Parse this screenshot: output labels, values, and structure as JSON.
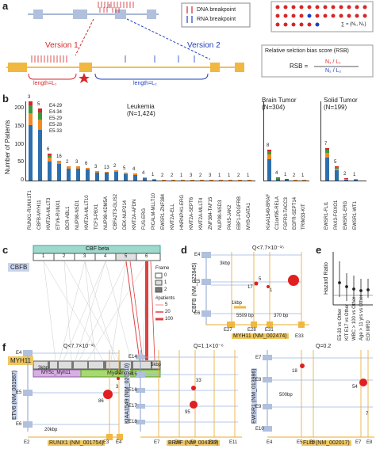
{
  "panels": {
    "a": "a",
    "b": "b",
    "c": "c",
    "d": "d",
    "e": "e",
    "f": "f"
  },
  "a": {
    "legend_dna": "DNA breakpoint",
    "legend_rna": "RNA breakpoint",
    "version1": "Version 1",
    "version2": "Version 2",
    "length1": "length=L₁",
    "length2": "length=L₂",
    "sum": "∑ = (N₁, N₂)",
    "rsb_title": "Relative selction bias score (RSB)",
    "rsb_label": "RSB =",
    "rsb_num": "N₁ / L₁",
    "rsb_den": "N₂ / L₂"
  },
  "b": {
    "ylabel": "Number of Patients",
    "leukemia": "Leukemia",
    "leukemia_n": "(N=1,424)",
    "brain": "Brain Tumor",
    "brain_n": "(N=304)",
    "solid": "Solid Tumor",
    "solid_n": "(N=199)",
    "yticks": [
      "0",
      "50",
      "100",
      "150",
      "200"
    ],
    "extra_labels": [
      "E4-29",
      "E4-34",
      "E5-29",
      "E5-28",
      "E5-33"
    ],
    "colors": {
      "blue": "#2d6fad",
      "orange": "#f08a24",
      "green": "#3a9a3a",
      "red": "#d62728",
      "purple": "#8b5db7",
      "pink": "#e377c2",
      "teal": "#17becf",
      "olive": "#bcbd22"
    },
    "leukemia_genes": [
      "RUNX1-RUNX1T1",
      "CBFB-MYH11",
      "KMT2A-MLLT3",
      "ETV6-RUNX1",
      "BCR-ABL1",
      "NUP98-NSD1",
      "KMT2A-MLLT10",
      "TCF3-PBX1",
      "NUP98-KDM5A",
      "CBFA2T3-GLIS2",
      "DEK-NUP214",
      "KMT2A-AFDN",
      "FUS-ERG",
      "PICALM-MLLT10",
      "EWSR1-ZNF384",
      "KMT2A-ELL",
      "HNRNPH1-ERG",
      "KMT2A-SEPT6",
      "KMT2A-MLLT4",
      "ZNF384-TAF15",
      "NUP98-NSD3",
      "PAX5-JAK2",
      "EBF1-PDGFRB",
      "MYB-GATA1"
    ],
    "leukemia_totals": [
      220,
      200,
      75,
      55,
      40,
      40,
      35,
      27,
      25,
      28,
      22,
      19,
      9,
      4,
      2,
      2,
      2,
      2,
      2,
      3,
      2,
      2,
      2,
      2
    ],
    "leukemia_labels": [
      "3",
      "5",
      "6",
      "16",
      "2",
      "3",
      "6",
      "3",
      "13",
      "2",
      "5",
      "4",
      "4",
      "1",
      "2",
      "2",
      "1",
      "3",
      "2",
      "3",
      "1",
      "1",
      "2",
      "1"
    ],
    "brain_genes": [
      "KIAA1549-BRAF",
      "C11orf95-RELA",
      "FGFR3-TACC3",
      "EGFR-SEPT14",
      "TRIM33-KIT"
    ],
    "brain_totals": [
      85,
      8,
      4,
      3,
      2
    ],
    "brain_labels": [
      "8",
      "4",
      "1",
      "2",
      "1"
    ],
    "solid_genes": [
      "EWSR1-FLI1",
      "PAX3-FOXO1",
      "EWSR1-ERG",
      "EWSR1-WT1"
    ],
    "solid_totals": [
      90,
      40,
      6,
      4
    ],
    "solid_labels": [
      "7",
      "5",
      "2",
      "1"
    ]
  },
  "c": {
    "cbf_label": "CBF beta",
    "cbfb": "CBFB",
    "myh11": "MYH11",
    "cbfb_exons": [
      "1",
      "2",
      "3",
      "4",
      "5",
      "6"
    ],
    "frame_title": "Frame",
    "frame_items": [
      "0",
      "1",
      "2"
    ],
    "patients_title": "#patients",
    "patients_items": [
      "5",
      "20",
      "100"
    ],
    "mysc": "MYSc_Myh11",
    "tail": "Myosin tail"
  },
  "d": {
    "q": "Q<7.7×10⁻¹⁵",
    "gene_y": "CBFB (NM_022845)",
    "gene_x": "MYH11 (NM_002474)",
    "e4": "E4",
    "e5": "E5",
    "e6": "E6",
    "e27": "E27",
    "e28": "E28",
    "e31": "E31",
    "e33": "E33",
    "scale1": "3kbp",
    "scale2": "1kbp",
    "bp1": "5509 bp",
    "bp2": "370 bp",
    "n1": "17",
    "n2": "5",
    "n3": "1"
  },
  "e": {
    "ylabel": "Hazard Ratio",
    "xlabels": [
      "E5-33 vs Other",
      "KIT E17 vs Other",
      "WBC > 100 vs Other",
      "Age > 11 yrs vs Other",
      "EOI MRD"
    ]
  },
  "f": {
    "f1": {
      "q": "Q<7.7×10⁻¹⁵",
      "gene_y": "ETV6 (NM_001987)",
      "gene_x": "RUNX1 (NM_001754)",
      "ey": [
        "E4",
        "E5",
        "E6"
      ],
      "ex": [
        "E2",
        "E3",
        "E4"
      ],
      "scale1": "3kbp",
      "scale2": "20kbp",
      "nums": [
        "22",
        "3",
        "86"
      ]
    },
    "f2": {
      "q": "Q=1.1×10⁻⁶",
      "gene_y": "KIAA1549 (NM_020910)",
      "gene_x": "BRAF (NM_004333)",
      "ey": [
        "E14",
        "E15",
        "E16",
        "E17",
        "E18"
      ],
      "ex": [
        "E7",
        "E8",
        "E9",
        "E10",
        "E11"
      ],
      "scale1": "5kbp",
      "nums": [
        "33",
        "95"
      ]
    },
    "f3": {
      "q": "Q=0.2",
      "gene_y": "EWSR1 (NM_013986)",
      "gene_x": "FLI1 (NM_002017)",
      "ey": [
        "E7",
        "E8",
        "E9",
        "E10"
      ],
      "ex": [
        "E4",
        "E5",
        "E6",
        "E7",
        "E8"
      ],
      "scale1": "500bp",
      "nums": [
        "18",
        "54",
        "7"
      ]
    }
  }
}
